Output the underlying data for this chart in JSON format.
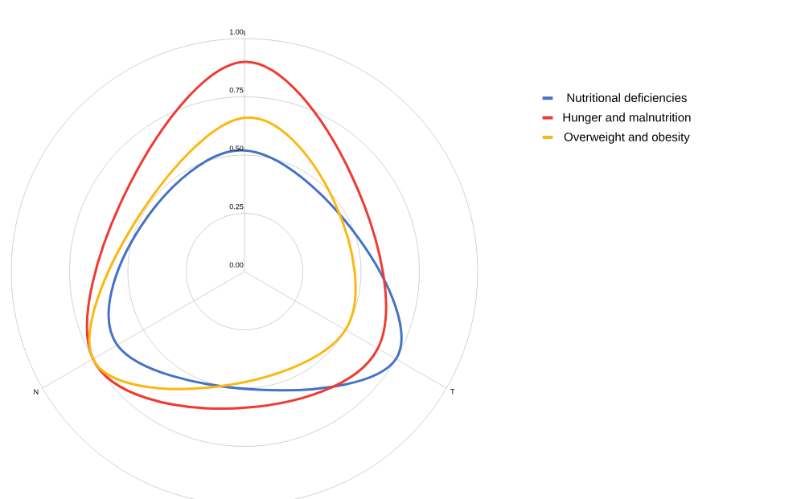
{
  "chart_data": {
    "type": "radar",
    "categories": [
      "I",
      "T",
      "N"
    ],
    "ylim": [
      0,
      1
    ],
    "yticks": [
      {
        "value": 0,
        "label": "0.00"
      },
      {
        "value": 0.25,
        "label": "0.25"
      },
      {
        "value": 0.5,
        "label": "0.50"
      },
      {
        "value": 0.75,
        "label": "0.75"
      },
      {
        "value": 1,
        "label": "1.00"
      }
    ],
    "grid": true,
    "legend": "right",
    "series": [
      {
        "name": "Nutritional deficiencies",
        "color": "#4472c4",
        "values": [
          0.52,
          0.75,
          0.63
        ]
      },
      {
        "name": "Hunger and malnutrition",
        "color": "#ee3b33",
        "values": [
          0.9,
          0.66,
          0.75
        ]
      },
      {
        "name": "Overweight and obesity",
        "color": "#fbb812",
        "values": [
          0.66,
          0.5,
          0.75
        ]
      }
    ]
  }
}
